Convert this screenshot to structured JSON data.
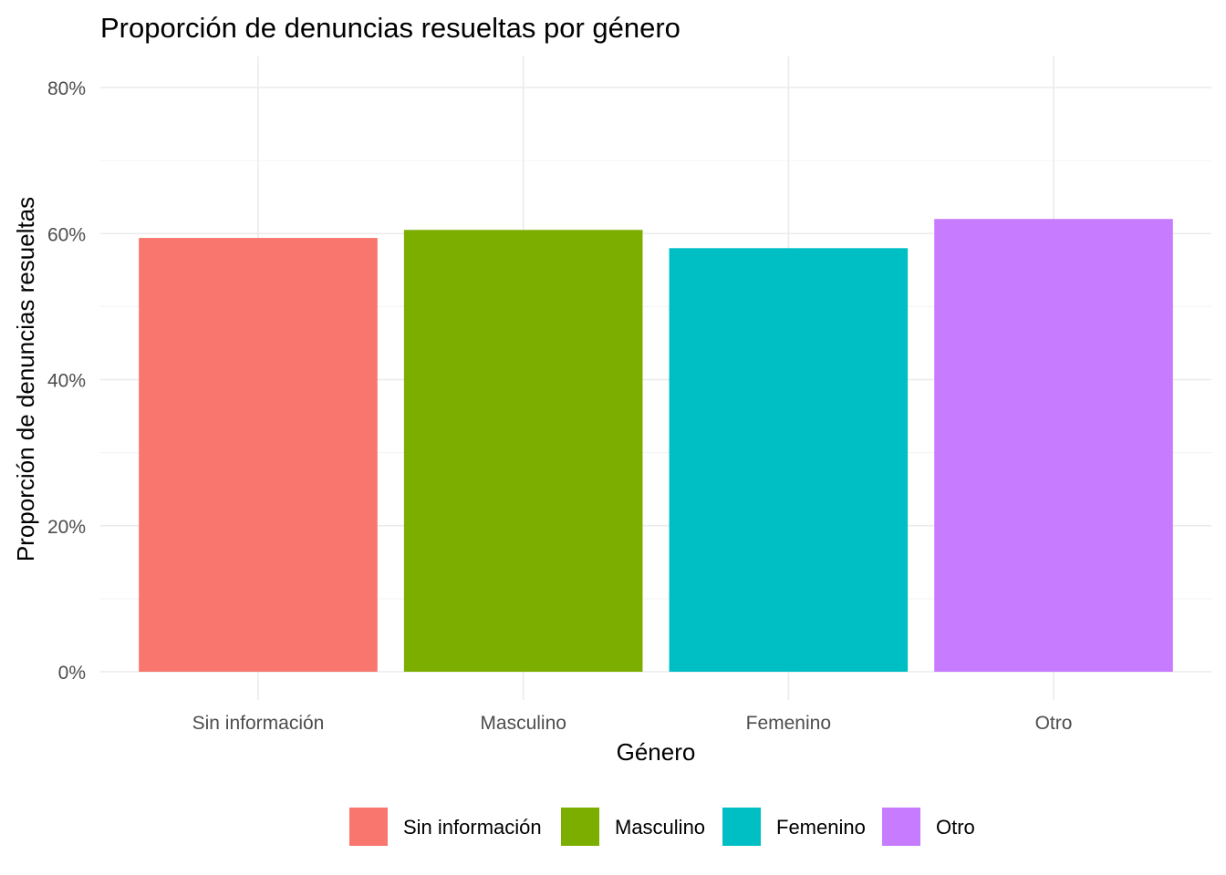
{
  "chart_data": {
    "type": "bar",
    "title": "Proporción de denuncias resueltas por género",
    "xlabel": "Género",
    "ylabel": "Proporción de denuncias resueltas",
    "categories": [
      "Sin información",
      "Masculino",
      "Femenino",
      "Otro"
    ],
    "values": [
      0.594,
      0.605,
      0.58,
      0.62
    ],
    "colors": [
      "#F8766D",
      "#7CAE00",
      "#00BFC4",
      "#C77CFF"
    ],
    "ylim": [
      0,
      0.8
    ],
    "yticks": [
      0,
      0.2,
      0.4,
      0.6,
      0.8
    ],
    "ytick_labels": [
      "0%",
      "20%",
      "40%",
      "60%",
      "80%"
    ],
    "grid": true,
    "legend": {
      "position": "bottom",
      "entries": [
        "Sin información",
        "Masculino",
        "Femenino",
        "Otro"
      ]
    }
  }
}
